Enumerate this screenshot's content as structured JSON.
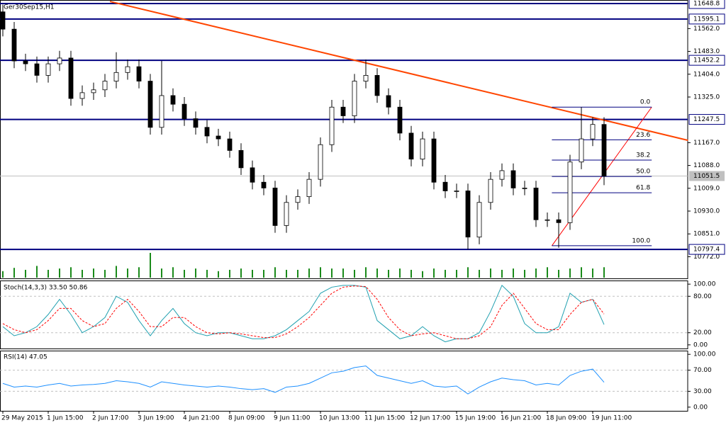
{
  "chart_data": {
    "type": "candlestick",
    "title": "Ger30Sep15,H1",
    "categories": [
      "29 May 2015",
      null,
      null,
      null,
      "1 Jun 15:00",
      null,
      null,
      null,
      "2 Jun 17:00",
      null,
      null,
      null,
      "3 Jun 19:00",
      null,
      null,
      null,
      "4 Jun 21:00",
      null,
      null,
      null,
      "8 Jun 09:00",
      null,
      null,
      null,
      "9 Jun 11:00",
      null,
      null,
      null,
      "10 Jun 13:00",
      null,
      null,
      null,
      "11 Jun 15:00",
      null,
      null,
      null,
      "12 Jun 17:00",
      null,
      null,
      null,
      "15 Jun 19:00",
      null,
      null,
      null,
      "16 Jun 21:00",
      null,
      null,
      null,
      "18 Jun 09:00",
      null,
      null,
      null,
      "19 Jun 11:00",
      null
    ],
    "open": [
      11620,
      11560,
      11450,
      11440,
      11400,
      11440,
      11460,
      11320,
      11340,
      11350,
      11380,
      11410,
      11430,
      11380,
      11220,
      11330,
      11300,
      11250,
      11220,
      11190,
      11180,
      11140,
      11080,
      11030,
      11010,
      10880,
      10960,
      10980,
      11040,
      11160,
      11290,
      11260,
      11380,
      11400,
      11330,
      11290,
      11200,
      11110,
      11180,
      11030,
      11000,
      11000,
      10840,
      10960,
      11040,
      11070,
      11010,
      11010,
      10900,
      10900,
      10890,
      11100,
      11180,
      11230
    ],
    "high": [
      11645,
      11585,
      11475,
      11465,
      11465,
      11485,
      11485,
      11365,
      11375,
      11405,
      11480,
      11455,
      11455,
      11405,
      11450,
      11355,
      11325,
      11275,
      11245,
      11215,
      11205,
      11165,
      11105,
      11055,
      11035,
      10985,
      11005,
      11065,
      11185,
      11315,
      11315,
      11405,
      11455,
      11425,
      11355,
      11315,
      11225,
      11205,
      11205,
      11055,
      11025,
      11025,
      10985,
      11065,
      11095,
      11095,
      11035,
      11035,
      10925,
      10925,
      11125,
      11290,
      11255,
      11255
    ],
    "low": [
      11535,
      11425,
      11415,
      11375,
      11375,
      11415,
      11295,
      11295,
      11315,
      11325,
      11355,
      11385,
      11355,
      11195,
      11195,
      11275,
      11225,
      11195,
      11165,
      11155,
      11115,
      11055,
      11005,
      10985,
      10855,
      10855,
      10935,
      10955,
      11015,
      11135,
      11235,
      11235,
      11355,
      11305,
      11265,
      11175,
      11085,
      11085,
      11005,
      10975,
      10975,
      10797,
      10815,
      10935,
      11015,
      10985,
      10985,
      10875,
      10875,
      10803,
      10865,
      11075,
      11155,
      11020
    ],
    "close": [
      11560,
      11450,
      11440,
      11400,
      11440,
      11460,
      11320,
      11340,
      11350,
      11380,
      11410,
      11430,
      11380,
      11220,
      11330,
      11300,
      11250,
      11220,
      11190,
      11180,
      11140,
      11080,
      11030,
      11010,
      10880,
      10960,
      10980,
      11040,
      11160,
      11290,
      11260,
      11380,
      11400,
      11330,
      11290,
      11200,
      11110,
      11180,
      11030,
      11000,
      11000,
      10840,
      10960,
      11040,
      11070,
      11010,
      11010,
      10900,
      10900,
      10890,
      11100,
      11180,
      11230,
      11051.5
    ],
    "volume": [
      10,
      15,
      12,
      18,
      12,
      14,
      16,
      12,
      14,
      12,
      18,
      14,
      16,
      38,
      14,
      16,
      12,
      14,
      12,
      10,
      12,
      14,
      12,
      12,
      16,
      12,
      12,
      14,
      16,
      14,
      14,
      12,
      16,
      14,
      12,
      14,
      12,
      10,
      14,
      12,
      12,
      16,
      12,
      14,
      12,
      14,
      12,
      14,
      16,
      12,
      14,
      16,
      14,
      16
    ],
    "up_color": "#ffffff",
    "down_color": "#000000",
    "volume_color": "#1a8a1a",
    "xlim": [
      -0.25,
      60.375
    ],
    "ylim": [
      10697,
      11661
    ],
    "yticks": [
      {
        "value": 11562,
        "label": "11562.0"
      },
      {
        "value": 11483,
        "label": "11483.0"
      },
      {
        "value": 11404,
        "label": "11404.0"
      },
      {
        "value": 11325,
        "label": "11325.0"
      },
      {
        "value": 11167,
        "label": "11167.0"
      },
      {
        "value": 11088,
        "label": "11088.0"
      },
      {
        "value": 11009,
        "label": "11009.0"
      },
      {
        "value": 10930,
        "label": "10930.0"
      },
      {
        "value": 10851,
        "label": "10851.0"
      },
      {
        "value": 10772,
        "label": "10772.0"
      }
    ],
    "levels": [
      {
        "value": 11648.8,
        "label": "11648.8"
      },
      {
        "value": 11595.1,
        "label": "11595.1"
      },
      {
        "value": 11452.2,
        "label": "11452.2"
      },
      {
        "value": 11247.5,
        "label": "11247.5"
      },
      {
        "value": 10797.4,
        "label": "10797.4"
      }
    ],
    "level_color": "#000080",
    "current_price": {
      "value": 11051.5,
      "label": "11051.5"
    },
    "trendline": {
      "points": [
        [
          9.44,
          11656
        ],
        [
          60.4,
          11175
        ]
      ],
      "color": "#ff4500"
    },
    "fibonacci": {
      "from_index": 48.4,
      "to_index": 57.2,
      "high": 11290,
      "low": 10810,
      "color": "#ff0000",
      "levels": [
        {
          "value": 0,
          "label": "0.0"
        },
        {
          "value": 23.6,
          "label": "23.6"
        },
        {
          "value": 38.2,
          "label": "38.2"
        },
        {
          "value": 50,
          "label": "50.0"
        },
        {
          "value": 61.8,
          "label": "61.8"
        },
        {
          "value": 100,
          "label": "100.0"
        }
      ]
    },
    "stochastic": {
      "label": "Stoch(14,3,3) 33.50 50.86",
      "ylim": [
        -6,
        106
      ],
      "yticks": [
        {
          "value": 100,
          "label": "100.00"
        },
        {
          "value": 80,
          "label": "80.00"
        },
        {
          "value": 20,
          "label": "20.00"
        },
        {
          "value": 0,
          "label": "0.00"
        }
      ],
      "grid_levels": [
        80,
        20
      ],
      "series": [
        {
          "name": "Main",
          "color": "#20a0b0",
          "values": [
            30,
            15,
            20,
            30,
            50,
            75,
            50,
            20,
            30,
            45,
            80,
            70,
            40,
            15,
            40,
            60,
            35,
            20,
            15,
            20,
            20,
            15,
            10,
            10,
            15,
            25,
            40,
            55,
            85,
            95,
            98,
            98,
            95,
            40,
            25,
            10,
            15,
            30,
            15,
            5,
            10,
            10,
            20,
            55,
            98,
            80,
            35,
            20,
            20,
            30,
            85,
            70,
            75,
            33.5
          ]
        },
        {
          "name": "Signal",
          "color": "#ff0000",
          "values": [
            35,
            25,
            20,
            25,
            40,
            60,
            60,
            40,
            30,
            35,
            60,
            75,
            55,
            30,
            30,
            45,
            45,
            30,
            20,
            18,
            20,
            18,
            15,
            12,
            12,
            18,
            30,
            45,
            65,
            85,
            95,
            97,
            96,
            75,
            45,
            25,
            15,
            18,
            20,
            15,
            10,
            10,
            15,
            30,
            65,
            85,
            60,
            35,
            25,
            25,
            50,
            70,
            75,
            50.86
          ]
        }
      ]
    },
    "rsi": {
      "label": "RSI(14) 47.05",
      "ylim": [
        -7,
        107
      ],
      "yticks": [
        {
          "value": 100,
          "label": "100.00"
        },
        {
          "value": 70,
          "label": "70.00"
        },
        {
          "value": 30,
          "label": "30.00"
        },
        {
          "value": 0,
          "label": "0.00"
        }
      ],
      "grid_levels": [
        70,
        30
      ],
      "color": "#1e90ff",
      "values": [
        45,
        38,
        40,
        38,
        42,
        45,
        40,
        42,
        43,
        45,
        50,
        48,
        45,
        38,
        48,
        45,
        42,
        40,
        38,
        40,
        38,
        35,
        33,
        35,
        28,
        38,
        40,
        45,
        55,
        65,
        68,
        75,
        78,
        60,
        55,
        50,
        45,
        50,
        40,
        38,
        40,
        25,
        38,
        48,
        55,
        52,
        50,
        42,
        45,
        42,
        60,
        68,
        72,
        47.05
      ]
    }
  }
}
